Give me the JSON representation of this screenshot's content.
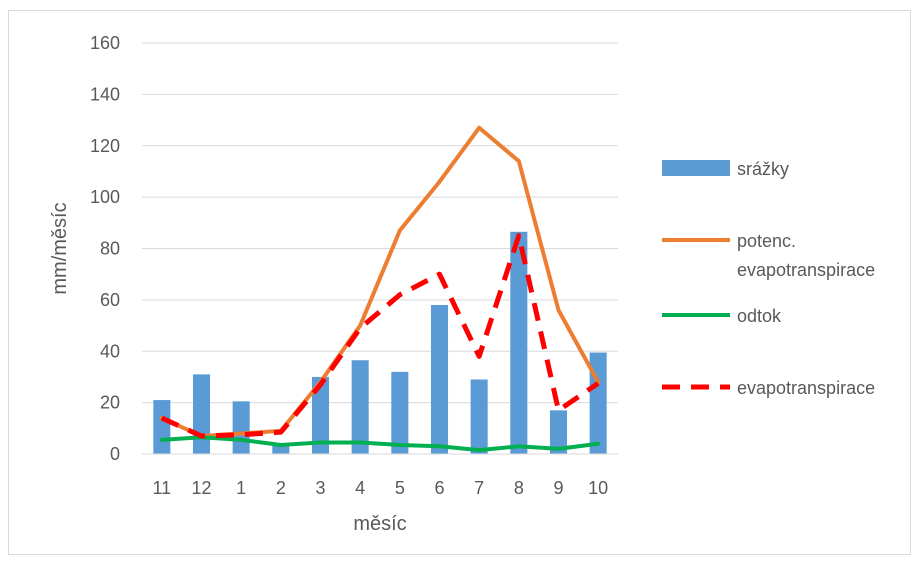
{
  "chart_data": {
    "type": "bar",
    "categories": [
      "11",
      "12",
      "1",
      "2",
      "3",
      "4",
      "5",
      "6",
      "7",
      "8",
      "9",
      "10"
    ],
    "xlabel": "měsíc",
    "ylabel": "mm/měsíc",
    "ylim": [
      0,
      160
    ],
    "yticks": [
      0,
      20,
      40,
      60,
      80,
      100,
      120,
      140,
      160
    ],
    "grid": true,
    "legend_position": "right",
    "series": [
      {
        "name": "srážky",
        "type": "bar",
        "color": "#5b9bd5",
        "values": [
          21,
          31,
          20.5,
          3.5,
          30,
          36.5,
          32,
          58,
          29,
          86.5,
          17,
          39.5
        ]
      },
      {
        "name": "potenc. evapotranspirace",
        "type": "line",
        "color": "#ed7d31",
        "dash": false,
        "values": [
          14,
          7,
          8,
          9,
          28,
          50,
          87,
          106,
          127,
          114,
          56,
          28
        ]
      },
      {
        "name": "odtok",
        "type": "line",
        "color": "#00b050",
        "dash": false,
        "values": [
          5.5,
          6.5,
          5.5,
          3.5,
          4.5,
          4.5,
          3.5,
          3,
          1.5,
          3,
          2,
          4
        ]
      },
      {
        "name": "evapotranspirace",
        "type": "line",
        "color": "#ff0000",
        "dash": true,
        "values": [
          14,
          7,
          7.5,
          8.5,
          27,
          49,
          62,
          70,
          38,
          85,
          17,
          27.5
        ]
      }
    ]
  }
}
